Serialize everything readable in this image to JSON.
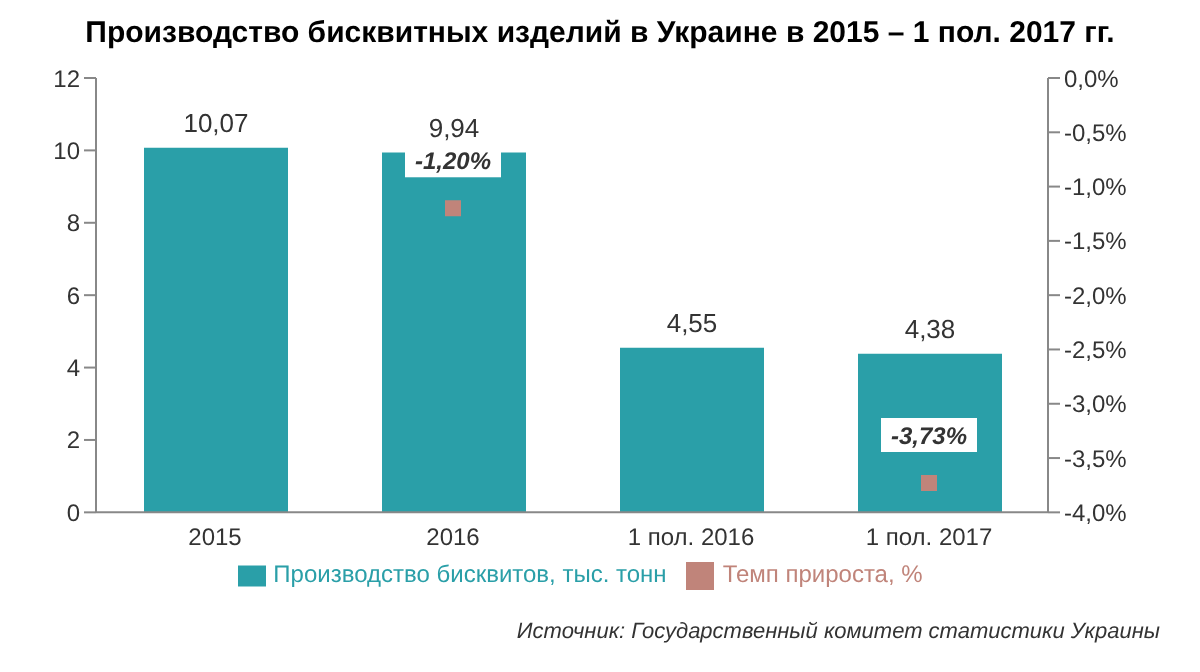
{
  "chart_data": {
    "type": "bar",
    "title": "Производство бисквитных изделий в Украине в 2015 – 1 пол. 2017 гг.",
    "categories": [
      "2015",
      "2016",
      "1 пол. 2016",
      "1 пол. 2017"
    ],
    "series": [
      {
        "name": "Производство бисквитов, тыс. тонн",
        "color": "#2a9fa8",
        "values": [
          10.07,
          9.94,
          4.55,
          4.38
        ],
        "value_labels": [
          "10,07",
          "9,94",
          "4,55",
          "4,38"
        ]
      },
      {
        "name": "Темп прироста, %",
        "type": "scatter",
        "axis": "y2",
        "color": "#c0847a",
        "values": [
          null,
          -1.2,
          null,
          -3.73
        ],
        "value_labels": [
          null,
          "-1,20%",
          null,
          "-3,73%"
        ]
      }
    ],
    "ylim": [
      0,
      12
    ],
    "yticks": [
      0,
      2,
      4,
      6,
      8,
      10,
      12
    ],
    "y2lim": [
      -4,
      0
    ],
    "y2ticks": [
      {
        "value": -4,
        "label": "-4,0%"
      },
      {
        "value": -3.5,
        "label": "-3,5%"
      },
      {
        "value": -3,
        "label": "-3,0%"
      },
      {
        "value": -2.5,
        "label": "-2,5%"
      },
      {
        "value": -2,
        "label": "-2,0%"
      },
      {
        "value": -1.5,
        "label": "-1,5%"
      },
      {
        "value": -1,
        "label": "-1,0%"
      },
      {
        "value": -0.5,
        "label": "-0,5%"
      },
      {
        "value": 0,
        "label": "0,0%"
      }
    ],
    "marker": "square",
    "grid": false,
    "legend": "bottom",
    "annotations": [
      "Источник: Государственный комитет статистики Украины"
    ]
  }
}
